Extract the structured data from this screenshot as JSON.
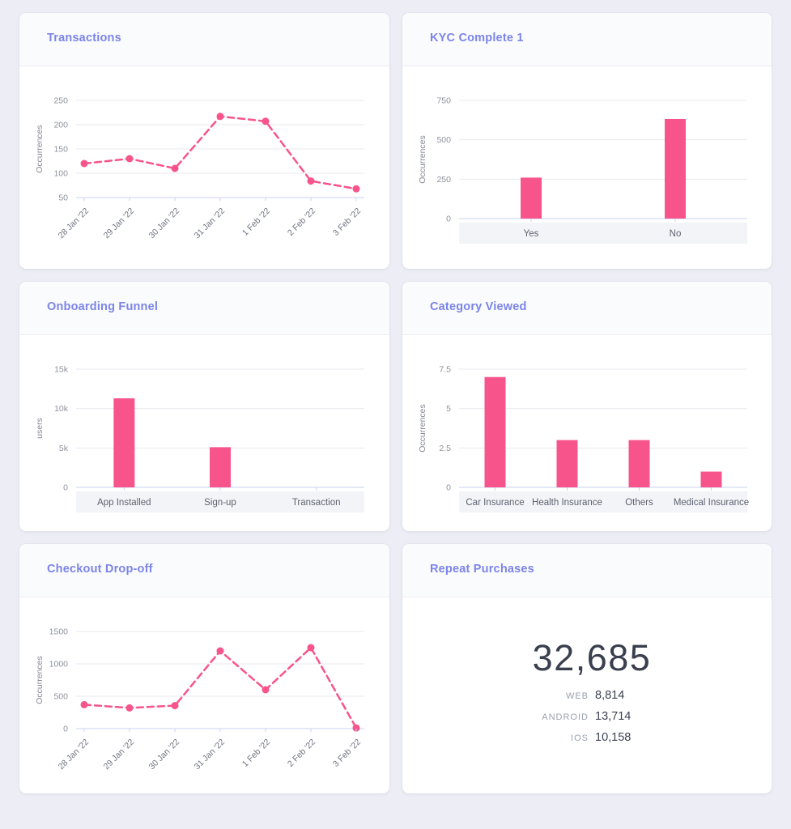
{
  "colors": {
    "accent": "#f8548c",
    "title": "#7b84e8",
    "page_bg": "#edeef5",
    "grid": "#e9eaef",
    "axis": "#c9d3f0",
    "ytick_label": "#8d929c",
    "xtick_label": "#6f7480",
    "category_label": "#5d6270",
    "category_band": "#f3f4f7"
  },
  "chart_data": [
    {
      "type": "line",
      "title": "Transactions",
      "ylabel": "Occurrences",
      "x": [
        "28 Jan '22",
        "29 Jan '22",
        "30 Jan '22",
        "31 Jan '22",
        "1 Feb '22",
        "2 Feb '22",
        "3 Feb '22"
      ],
      "values": [
        120,
        130,
        110,
        217,
        207,
        84,
        68
      ],
      "yticks": [
        50,
        100,
        150,
        200,
        250
      ],
      "ylim": [
        50,
        250
      ],
      "x_label_rotation": -45,
      "line_style": "dashed",
      "point_markers": true,
      "grid": true,
      "legend": "none"
    },
    {
      "type": "bar",
      "title": "KYC Complete 1",
      "ylabel": "Occurrences",
      "categories": [
        "Yes",
        "No"
      ],
      "values": [
        260,
        632
      ],
      "yticks": [
        0,
        250,
        500,
        750
      ],
      "ylim": [
        0,
        750
      ],
      "grid": true,
      "legend": "none"
    },
    {
      "type": "bar",
      "title": "Onboarding Funnel",
      "ylabel": "users",
      "categories": [
        "App Installed",
        "Sign-up",
        "Transaction"
      ],
      "values": [
        11300,
        5100,
        0
      ],
      "yticks": [
        0,
        5000,
        10000,
        15000
      ],
      "ytick_labels": [
        "0",
        "5k",
        "10k",
        "15k"
      ],
      "ylim": [
        0,
        15000
      ],
      "grid": true,
      "legend": "none"
    },
    {
      "type": "bar",
      "title": "Category Viewed",
      "ylabel": "Occurrences",
      "categories": [
        "Car Insurance",
        "Health Insurance",
        "Others",
        "Medical Insurance"
      ],
      "values": [
        7,
        3,
        3,
        1
      ],
      "yticks": [
        0,
        2.5,
        5,
        7.5
      ],
      "ytick_labels": [
        "0",
        "2.5",
        "5",
        "7.5"
      ],
      "ylim": [
        0,
        7.5
      ],
      "grid": true,
      "legend": "none"
    },
    {
      "type": "line",
      "title": "Checkout Drop-off",
      "ylabel": "Occurrences",
      "x": [
        "28 Jan '22",
        "29 Jan '22",
        "30 Jan '22",
        "31 Jan '22",
        "1 Feb '22",
        "2 Feb '22",
        "3 Feb '22"
      ],
      "values": [
        370,
        320,
        355,
        1200,
        600,
        1250,
        10
      ],
      "yticks": [
        0,
        500,
        1000,
        1500
      ],
      "ylim": [
        0,
        1500
      ],
      "x_label_rotation": -45,
      "line_style": "dashed",
      "point_markers": true,
      "grid": true,
      "legend": "none"
    },
    {
      "type": "stat",
      "title": "Repeat Purchases",
      "total": "32,685",
      "breakdown": [
        {
          "label": "WEB",
          "value": "8,814"
        },
        {
          "label": "ANDROID",
          "value": "13,714"
        },
        {
          "label": "IOS",
          "value": "10,158"
        }
      ]
    }
  ]
}
